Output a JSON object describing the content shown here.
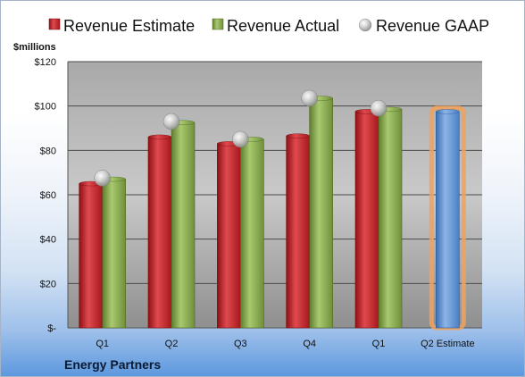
{
  "chart_data": {
    "type": "bar",
    "categories": [
      "Q1",
      "Q2",
      "Q3",
      "Q4",
      "Q1",
      "Q2 Estimate"
    ],
    "series": [
      {
        "name": "Revenue Estimate",
        "type": "bar",
        "color": "#c0262b",
        "values": [
          65,
          86,
          83,
          86.5,
          97.5,
          null
        ]
      },
      {
        "name": "Revenue Actual",
        "type": "bar",
        "color": "#8aac4f",
        "values": [
          67,
          92.5,
          85,
          103.5,
          98.5,
          null
        ]
      },
      {
        "name": "Revenue GAAP",
        "type": "scatter",
        "color": "#c8c8c8",
        "values": [
          67.5,
          93,
          85,
          103.5,
          99,
          null
        ]
      },
      {
        "type": "bar",
        "color": "#5b8fd0",
        "highlight": "#f2a15a",
        "values": [
          null,
          null,
          null,
          null,
          null,
          97.5
        ]
      }
    ],
    "ylabel": "$millions",
    "ylim": [
      0,
      120
    ],
    "yticks": [
      0,
      20,
      40,
      60,
      80,
      100,
      120
    ],
    "ytick_labels": [
      "$-",
      "$20",
      "$40",
      "$60",
      "$80",
      "$100",
      "$120"
    ],
    "grid": true,
    "legend": "top"
  },
  "company": "Energy Partners"
}
